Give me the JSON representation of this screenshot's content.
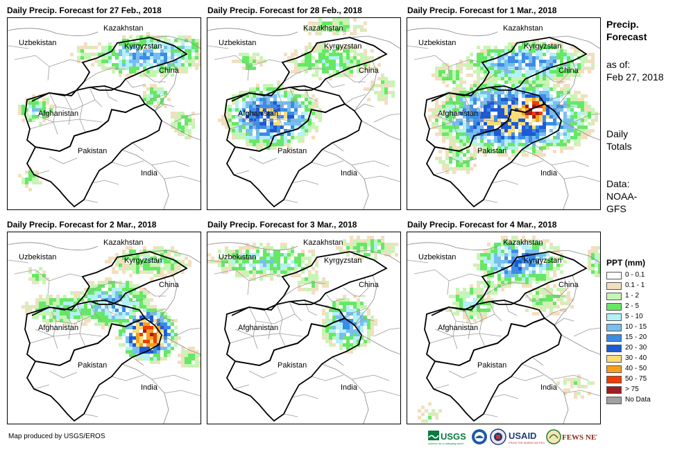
{
  "panels": [
    {
      "title": "Daily Precip. Forecast for 27 Feb., 2018",
      "labels": {
        "kazakhstan": "Kazakhstan",
        "uzbekistan": "Uzbekistan",
        "kyrgyzstan": "Kyrgyzstan",
        "china": "China",
        "afghanistan": "Afghanistan",
        "pakistan": "Pakistan",
        "india": "India"
      }
    },
    {
      "title": "Daily Precip. Forecast for 28 Feb., 2018",
      "labels": {
        "kazakhstan": "Kazakhstan",
        "uzbekistan": "Uzbekistan",
        "kyrgyzstan": "Kyrgyzstan",
        "china": "China",
        "afghanistan": "Afghanistan",
        "pakistan": "Pakistan",
        "india": "India"
      }
    },
    {
      "title": "Daily Precip. Forecast for 1 Mar., 2018",
      "labels": {
        "kazakhstan": "Kazakhstan",
        "uzbekistan": "Uzbekistan",
        "kyrgyzstan": "Kyrgyzstan",
        "china": "China",
        "afghanistan": "Afghanistan",
        "pakistan": "Pakistan",
        "india": "India"
      }
    },
    {
      "title": "Daily Precip. Forecast for 2 Mar., 2018",
      "labels": {
        "kazakhstan": "Kazakhstan",
        "uzbekistan": "Uzbekistan",
        "kyrgyzstan": "Kyrgyzstan",
        "china": "China",
        "afghanistan": "Afghanistan",
        "pakistan": "Pakistan",
        "india": "India"
      }
    },
    {
      "title": "Daily Precip. Forecast for 3 Mar., 2018",
      "labels": {
        "kazakhstan": "Kazakhstan",
        "uzbekistan": "Uzbekistan",
        "kyrgyzstan": "Kyrgyzstan",
        "china": "China",
        "afghanistan": "Afghanistan",
        "pakistan": "Pakistan",
        "india": "India"
      }
    },
    {
      "title": "Daily Precip. Forecast for 4 Mar., 2018",
      "labels": {
        "kazakhstan": "Kazakhstan",
        "uzbekistan": "Uzbekistan",
        "kyrgyzstan": "Kyrgyzstan",
        "china": "China",
        "afghanistan": "Afghanistan",
        "pakistan": "Pakistan",
        "india": "India"
      }
    }
  ],
  "side": {
    "title_line1": "Precip.",
    "title_line2": "Forecast",
    "asof_line1": "as of:",
    "asof_line2": "Feb 27, 2018",
    "daily_line1": "Daily",
    "daily_line2": "Totals",
    "data_line1": "Data:",
    "data_line2": "NOAA-",
    "data_line3": "GFS"
  },
  "legend": {
    "title": "PPT (mm)",
    "items": [
      {
        "label": "0 - 0.1",
        "color": "#ffffff"
      },
      {
        "label": "0.1 - 1",
        "color": "#f2dfbf"
      },
      {
        "label": "1 - 2",
        "color": "#c7f5b4"
      },
      {
        "label": "2 - 5",
        "color": "#66e866"
      },
      {
        "label": "5 - 10",
        "color": "#b4f0f5"
      },
      {
        "label": "10 - 15",
        "color": "#78bef0"
      },
      {
        "label": "15 - 20",
        "color": "#3c8ce6"
      },
      {
        "label": "20 - 30",
        "color": "#1e5ad2"
      },
      {
        "label": "30 - 40",
        "color": "#fadc78"
      },
      {
        "label": "40 - 50",
        "color": "#f5a01e"
      },
      {
        "label": "50 - 75",
        "color": "#f03c00"
      },
      {
        "label": "> 75",
        "color": "#a01e1e"
      },
      {
        "label": "No Data",
        "color": "#a0a0a0"
      }
    ]
  },
  "credit": "Map produced by USGS/EROS",
  "logos": {
    "usgs": "USGS",
    "usaid": "USAID",
    "fewsnet": "FEWS NET"
  }
}
